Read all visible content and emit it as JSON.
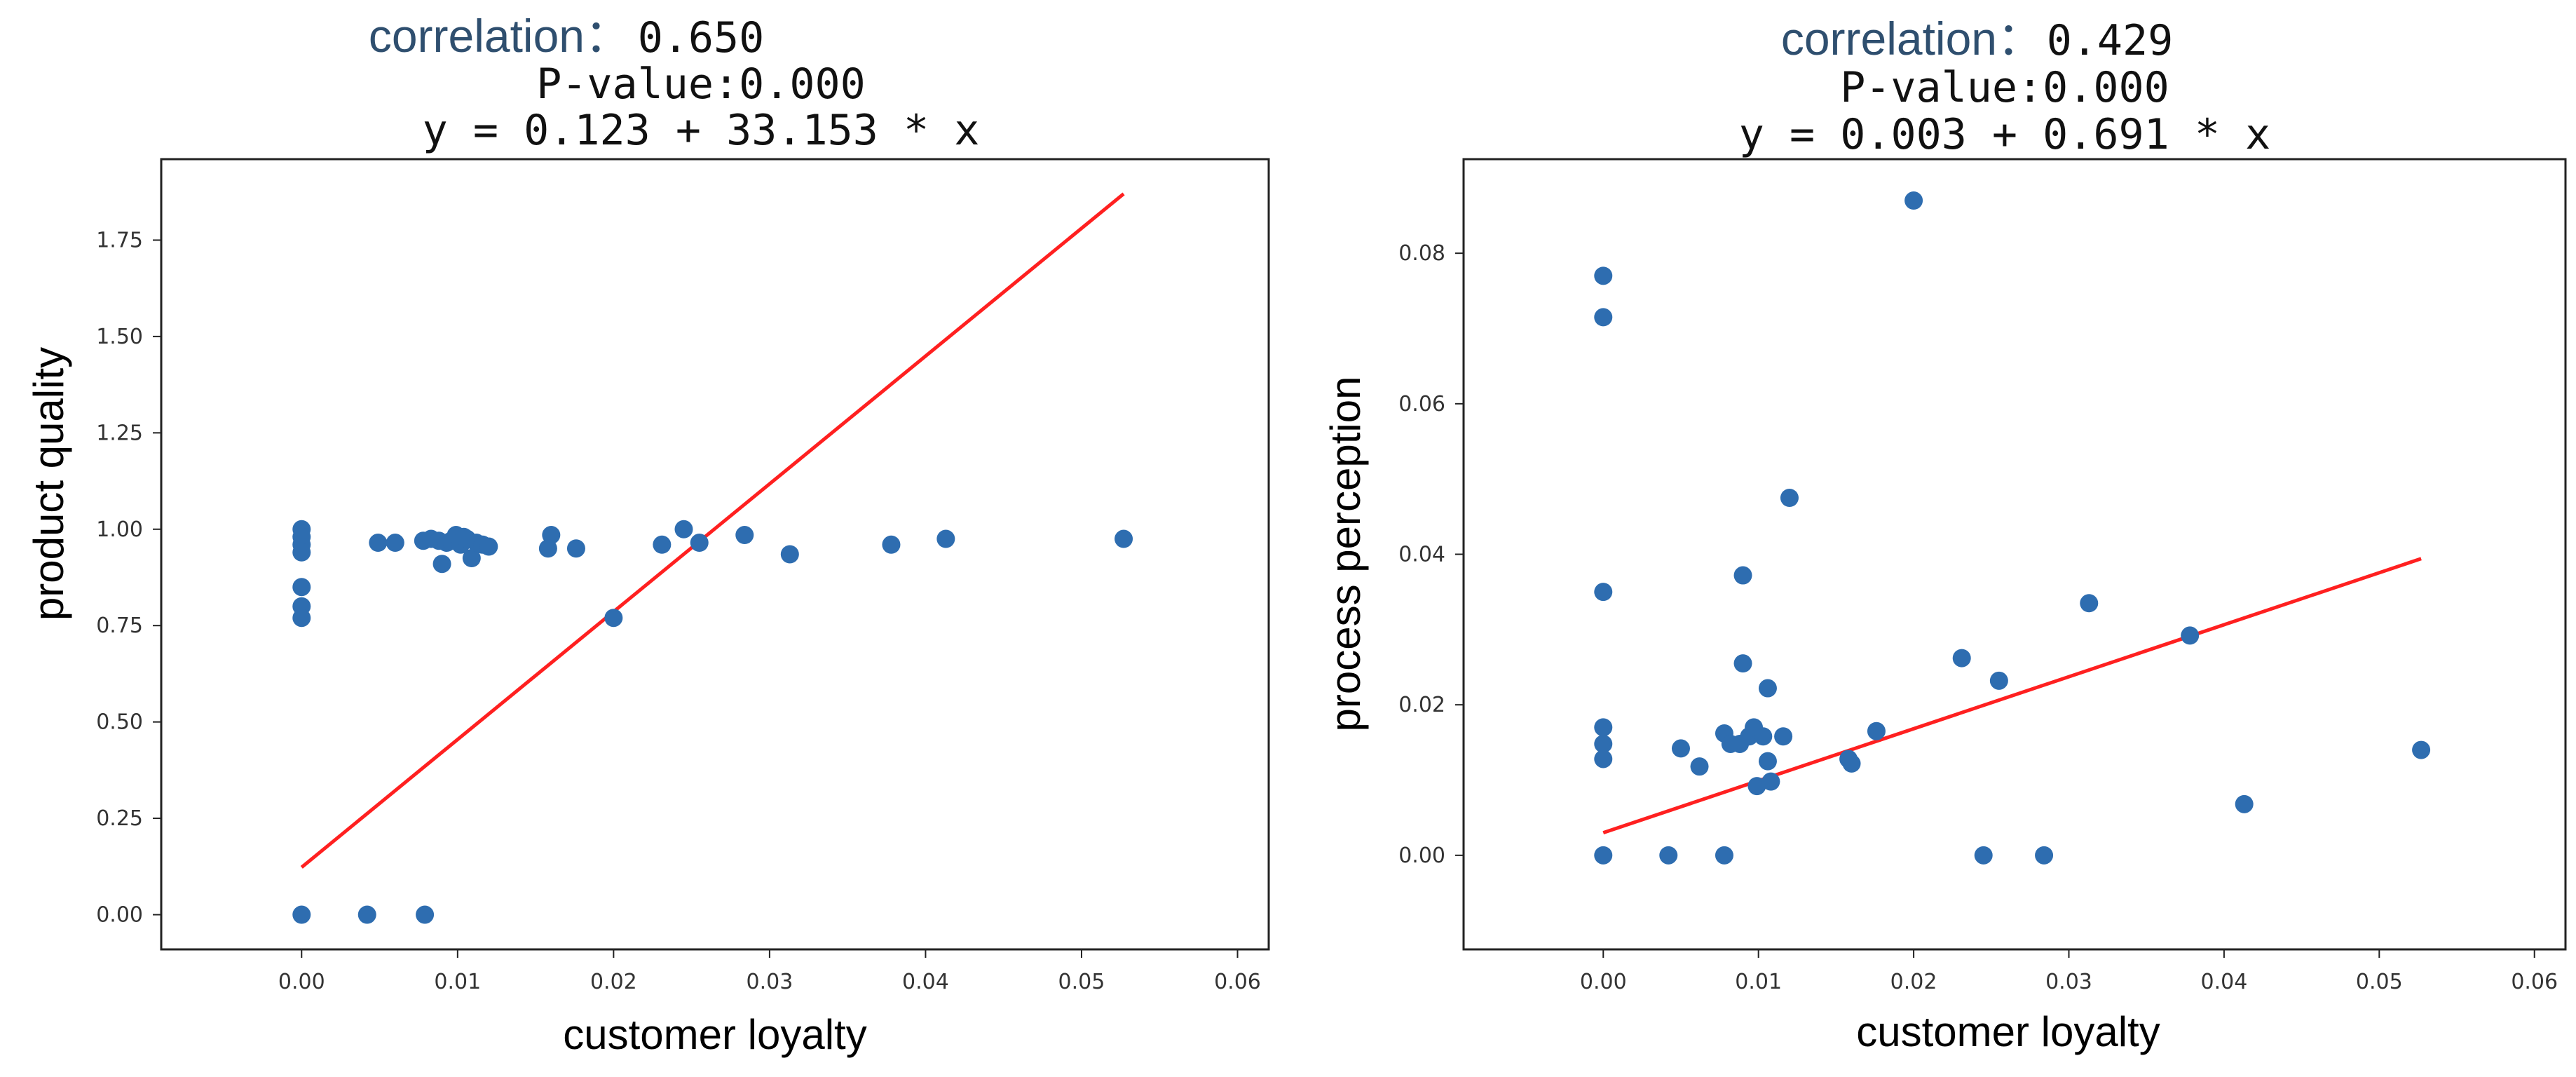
{
  "colors": {
    "point": "#2e6db0",
    "fit_line": "#ff2020",
    "frame": "#222222",
    "title": "#2f4f6f"
  },
  "chart_data": [
    {
      "type": "scatter",
      "title": {
        "correlation_label": "correlation：",
        "correlation_value": "0.650",
        "pvalue_text": "P-value:0.000",
        "equation_text": "y = 0.123 + 33.153 * x"
      },
      "xlabel": "customer loyalty",
      "ylabel": "product quality",
      "xlim": [
        -0.009,
        0.062
      ],
      "ylim": [
        -0.09,
        1.96
      ],
      "x_ticks": [
        0.0,
        0.01,
        0.02,
        0.03,
        0.04,
        0.05,
        0.06
      ],
      "x_tick_labels": [
        "0.00",
        "0.01",
        "0.02",
        "0.03",
        "0.04",
        "0.05",
        "0.06"
      ],
      "y_ticks": [
        0.0,
        0.25,
        0.5,
        0.75,
        1.0,
        1.25,
        1.5,
        1.75
      ],
      "y_tick_labels": [
        "0.00",
        "0.25",
        "0.50",
        "0.75",
        "1.00",
        "1.25",
        "1.50",
        "1.75"
      ],
      "regression": {
        "intercept": 0.123,
        "slope": 33.153,
        "x_range": [
          0.0,
          0.0527
        ]
      },
      "points": [
        [
          0.0,
          1.0
        ],
        [
          0.0,
          0.98
        ],
        [
          0.0,
          0.96
        ],
        [
          0.0,
          0.94
        ],
        [
          0.0,
          0.85
        ],
        [
          0.0,
          0.8
        ],
        [
          0.0,
          0.77
        ],
        [
          0.0,
          0.0
        ],
        [
          0.0049,
          0.965
        ],
        [
          0.006,
          0.965
        ],
        [
          0.0078,
          0.97
        ],
        [
          0.0083,
          0.975
        ],
        [
          0.0088,
          0.97
        ],
        [
          0.009,
          0.91
        ],
        [
          0.0093,
          0.965
        ],
        [
          0.0096,
          0.97
        ],
        [
          0.0099,
          0.985
        ],
        [
          0.0102,
          0.96
        ],
        [
          0.0104,
          0.98
        ],
        [
          0.0106,
          0.975
        ],
        [
          0.0109,
          0.925
        ],
        [
          0.0112,
          0.965
        ],
        [
          0.0116,
          0.96
        ],
        [
          0.012,
          0.955
        ],
        [
          0.016,
          0.985
        ],
        [
          0.0158,
          0.95
        ],
        [
          0.0176,
          0.95
        ],
        [
          0.02,
          0.77
        ],
        [
          0.0231,
          0.96
        ],
        [
          0.0245,
          1.0
        ],
        [
          0.0255,
          0.965
        ],
        [
          0.0284,
          0.985
        ],
        [
          0.0313,
          0.935
        ],
        [
          0.0378,
          0.96
        ],
        [
          0.0413,
          0.975
        ],
        [
          0.0527,
          0.975
        ],
        [
          0.0042,
          0.0
        ],
        [
          0.0079,
          0.0
        ]
      ]
    },
    {
      "type": "scatter",
      "title": {
        "correlation_label": "correlation：",
        "correlation_value": "0.429",
        "pvalue_text": "P-value:0.000",
        "equation_text": "y = 0.003 + 0.691 * x"
      },
      "xlabel": "customer loyalty",
      "ylabel": "process perception",
      "xlim": [
        -0.009,
        0.062
      ],
      "ylim": [
        -0.0125,
        0.0925
      ],
      "x_ticks": [
        0.0,
        0.01,
        0.02,
        0.03,
        0.04,
        0.05,
        0.06
      ],
      "x_tick_labels": [
        "0.00",
        "0.01",
        "0.02",
        "0.03",
        "0.04",
        "0.05",
        "0.06"
      ],
      "y_ticks": [
        0.0,
        0.02,
        0.04,
        0.06,
        0.08
      ],
      "y_tick_labels": [
        "0.00",
        "0.02",
        "0.04",
        "0.06",
        "0.08"
      ],
      "regression": {
        "intercept": 0.003,
        "slope": 0.691,
        "x_range": [
          0.0,
          0.0527
        ]
      },
      "points": [
        [
          0.0,
          0.077
        ],
        [
          0.0,
          0.0715
        ],
        [
          0.0,
          0.035
        ],
        [
          0.0,
          0.017
        ],
        [
          0.0,
          0.0148
        ],
        [
          0.0,
          0.0128
        ],
        [
          0.0,
          0.0
        ],
        [
          0.0042,
          0.0
        ],
        [
          0.005,
          0.0142
        ],
        [
          0.0062,
          0.0118
        ],
        [
          0.0078,
          0.0162
        ],
        [
          0.0078,
          0.0
        ],
        [
          0.0082,
          0.0148
        ],
        [
          0.0088,
          0.0148
        ],
        [
          0.009,
          0.0372
        ],
        [
          0.009,
          0.0255
        ],
        [
          0.0094,
          0.0158
        ],
        [
          0.0097,
          0.017
        ],
        [
          0.0099,
          0.0092
        ],
        [
          0.0103,
          0.0158
        ],
        [
          0.0106,
          0.0222
        ],
        [
          0.0106,
          0.0125
        ],
        [
          0.0108,
          0.0098
        ],
        [
          0.0116,
          0.0158
        ],
        [
          0.012,
          0.0475
        ],
        [
          0.0158,
          0.0128
        ],
        [
          0.016,
          0.0122
        ],
        [
          0.0176,
          0.0165
        ],
        [
          0.02,
          0.087
        ],
        [
          0.0231,
          0.0262
        ],
        [
          0.0245,
          0.0
        ],
        [
          0.0255,
          0.0232
        ],
        [
          0.0284,
          0.0
        ],
        [
          0.0313,
          0.0335
        ],
        [
          0.0378,
          0.0292
        ],
        [
          0.0413,
          0.0068
        ],
        [
          0.0527,
          0.014
        ]
      ]
    }
  ]
}
